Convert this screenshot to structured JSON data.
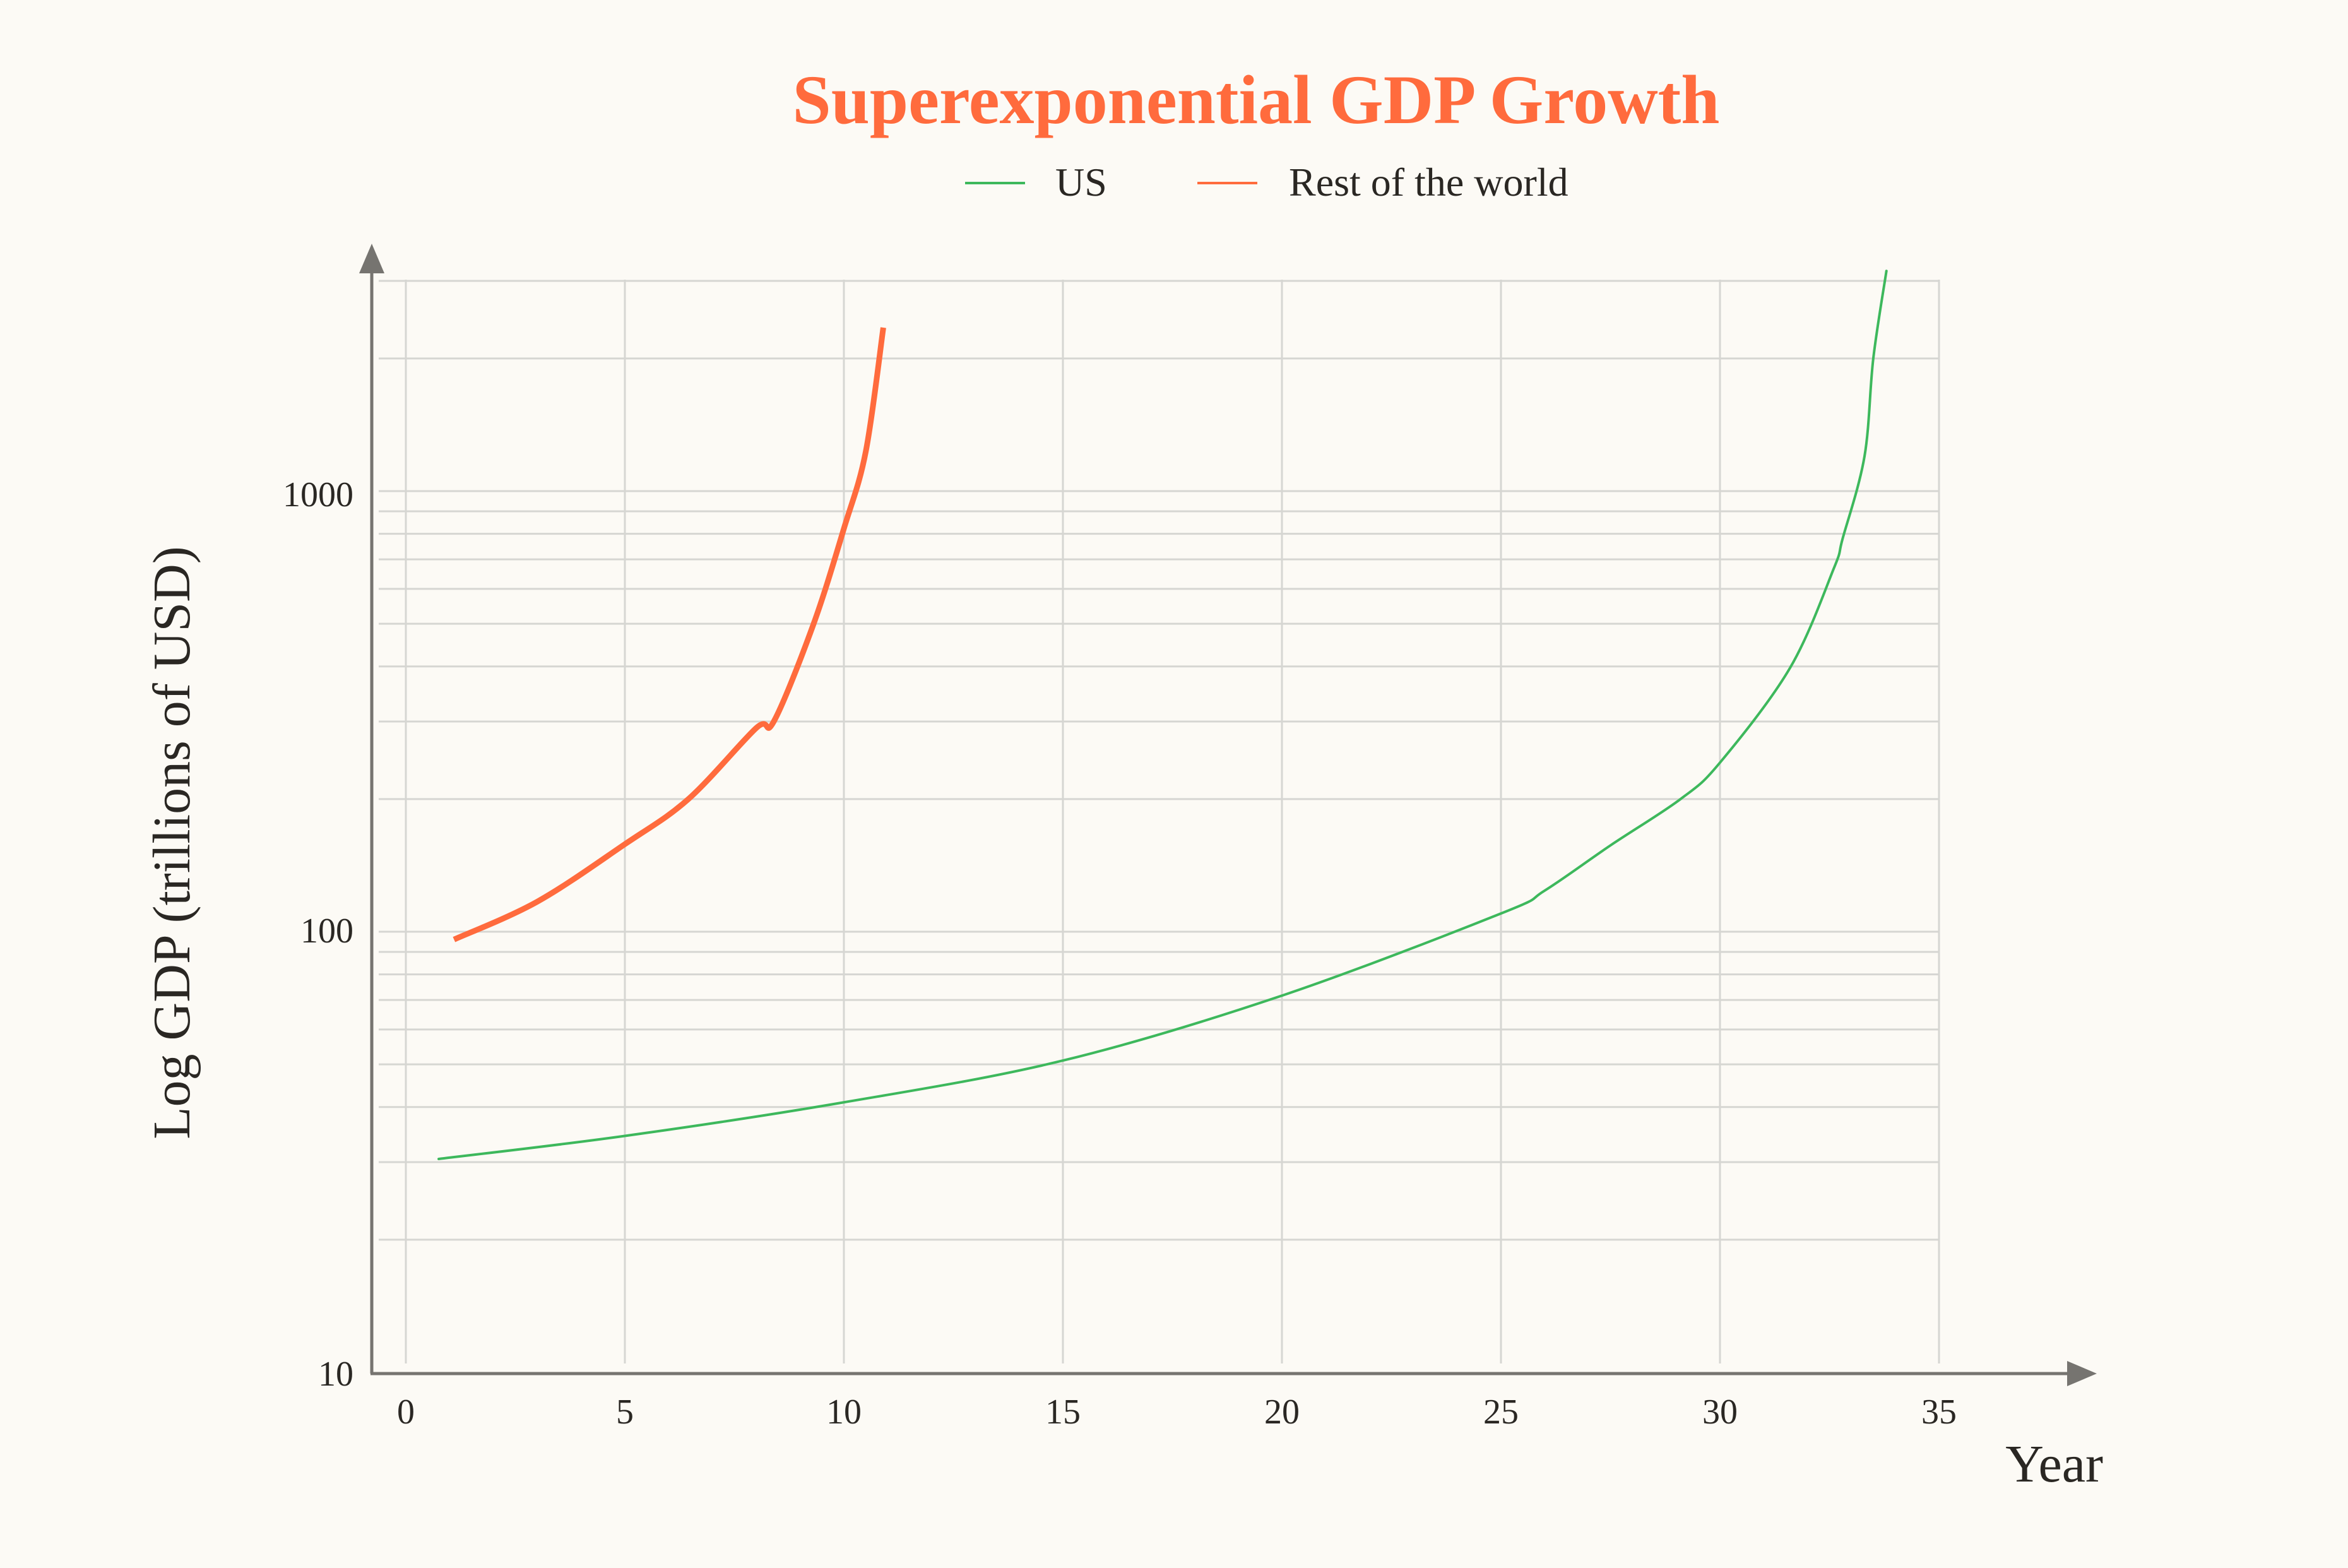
{
  "colors": {
    "background": "#FCFAF5",
    "title": "#FF6B3D",
    "us": "#3DB85C",
    "rest_of_world": "#FF6B3D",
    "axis": "#767470",
    "grid": "#D6D6D2",
    "text": "#2A2723"
  },
  "header": {
    "title": "Superexponential GDP Growth"
  },
  "legend": {
    "items": [
      {
        "label": "US",
        "color": "#3DB85C"
      },
      {
        "label": "Rest of the world",
        "color": "#FF6B3D"
      }
    ]
  },
  "axes": {
    "x_title": "Year",
    "y_title": "Log GDP (trillions of USD)",
    "x_ticks": [
      "0",
      "5",
      "10",
      "15",
      "20",
      "25",
      "30",
      "35"
    ],
    "y_ticks": [
      "10",
      "100",
      "1000"
    ]
  },
  "chart_data": {
    "type": "line",
    "title": "Superexponential GDP Growth",
    "xlabel": "Year",
    "ylabel": "Log GDP (trillions of USD)",
    "xlim": [
      0,
      35
    ],
    "ylim": [
      10,
      3000
    ],
    "yscale": "log",
    "grid": true,
    "legend_position": "top-center",
    "x_ticks": [
      0,
      5,
      10,
      15,
      20,
      25,
      30,
      35
    ],
    "y_ticks": [
      10,
      100,
      1000
    ],
    "series": [
      {
        "name": "US",
        "color": "#3DB85C",
        "x": [
          0.75,
          5,
          10,
          15,
          20,
          25,
          26,
          27.5,
          29.1,
          30,
          31.6,
          32.6,
          32.8,
          33.3,
          33.5,
          33.8
        ],
        "y": [
          30.5,
          34.4,
          41,
          51,
          71.6,
          110,
          124,
          157,
          200,
          242,
          397,
          668,
          780,
          1200,
          2000,
          3160
        ]
      },
      {
        "name": "Rest of the world",
        "color": "#FF6B3D",
        "x": [
          1.1,
          3,
          5,
          6.45,
          8,
          8.4,
          9.3,
          10,
          10.5,
          10.9
        ],
        "y": [
          96,
          117,
          158,
          200,
          290,
          300,
          497,
          822,
          1230,
          2350
        ]
      }
    ]
  }
}
